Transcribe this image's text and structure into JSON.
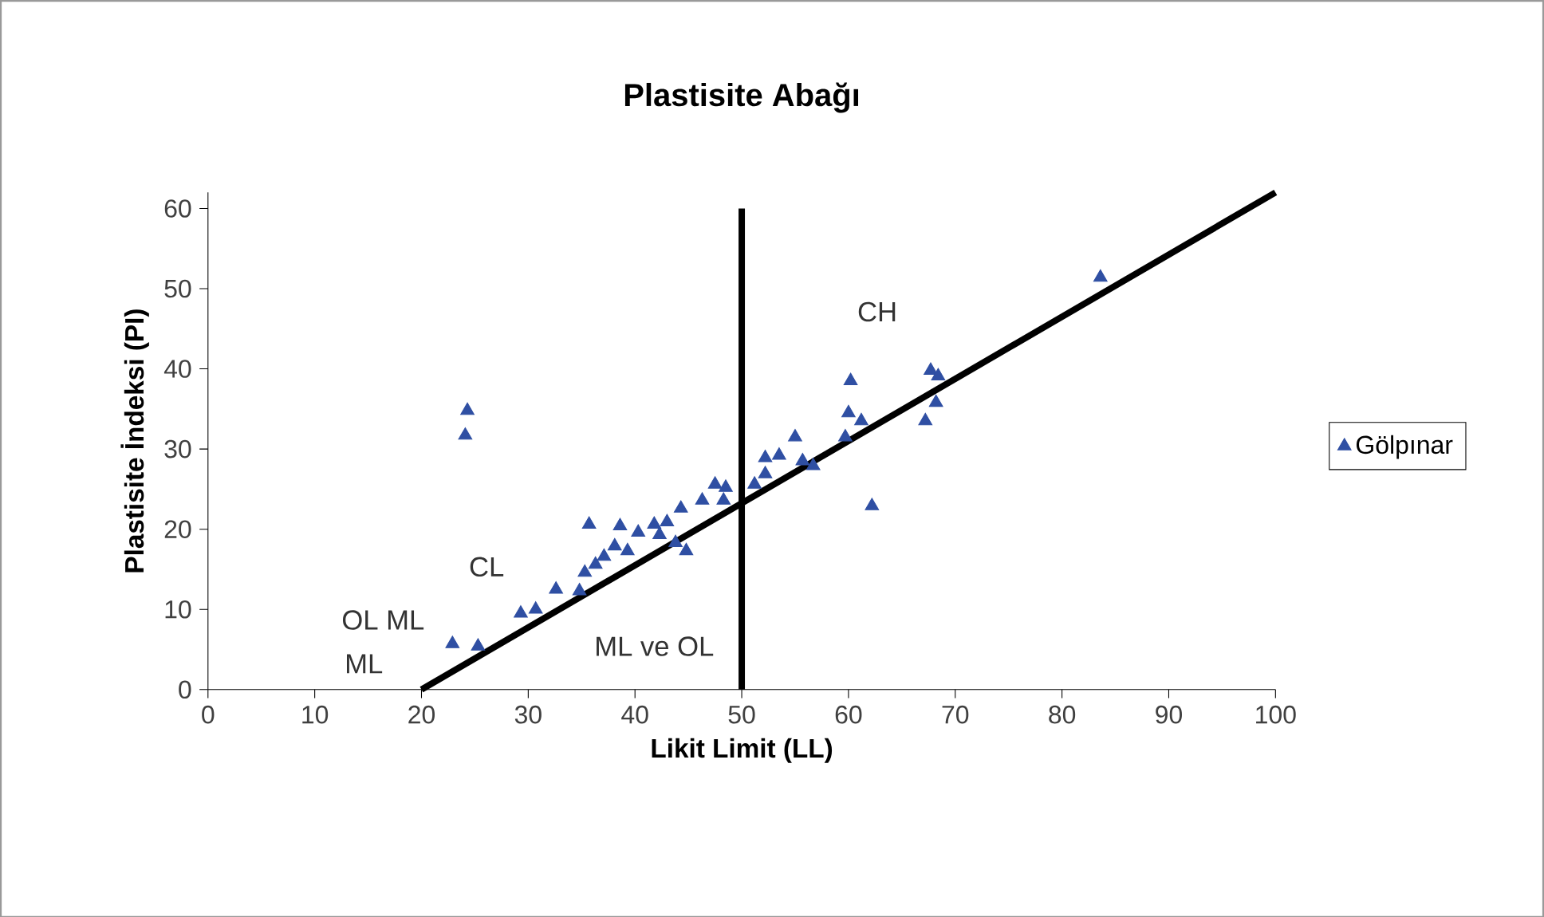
{
  "chart_data": {
    "type": "scatter",
    "title": "Plastisite Abağı",
    "xlabel": "Likit Limit (LL)",
    "ylabel": "Plastisite İndeksi (PI)",
    "xlim": [
      0,
      100
    ],
    "ylim": [
      0,
      62
    ],
    "xticks": [
      0,
      10,
      20,
      30,
      40,
      50,
      60,
      70,
      80,
      90,
      100
    ],
    "yticks": [
      0,
      10,
      20,
      30,
      40,
      50,
      60
    ],
    "legend": "right",
    "marker": "triangle",
    "series": [
      {
        "name": "Gölpınar",
        "color": "#2f4fa3",
        "x": [
          24.3,
          24.1,
          22.9,
          25.3,
          29.3,
          30.7,
          32.6,
          34.8,
          35.7,
          38.6,
          35.3,
          36.3,
          37.1,
          38.1,
          39.3,
          40.3,
          41.8,
          43.0,
          44.3,
          46.3,
          47.5,
          48.5,
          48.3,
          44.8,
          43.8,
          42.3,
          51.2,
          52.2,
          52.2,
          53.5,
          55.7,
          56.7,
          62.2,
          83.6,
          60.2,
          60.0,
          61.2,
          59.7,
          67.7,
          68.4,
          68.2,
          67.2,
          55.0
        ],
        "values": [
          34.8,
          31.7,
          5.7,
          5.4,
          9.5,
          10.0,
          12.5,
          12.3,
          20.6,
          20.4,
          14.6,
          15.6,
          16.6,
          17.9,
          17.3,
          19.6,
          20.6,
          20.9,
          22.6,
          23.6,
          25.6,
          25.2,
          23.6,
          17.3,
          18.3,
          19.3,
          25.6,
          26.9,
          28.9,
          29.2,
          28.5,
          27.9,
          22.9,
          51.4,
          38.5,
          34.5,
          33.5,
          31.5,
          39.8,
          39.1,
          35.8,
          33.5,
          31.5
        ]
      },
      {
        "type": "line",
        "color": "#000000",
        "marker": "none",
        "x": [
          20,
          100
        ],
        "values": [
          0,
          62
        ]
      }
    ],
    "ref_lines": [
      {
        "axis": "x",
        "value": 50,
        "color": "#000000"
      }
    ],
    "annotations": [
      "CH",
      "CL",
      "OL ML",
      "ML",
      "ML ve OL"
    ]
  }
}
